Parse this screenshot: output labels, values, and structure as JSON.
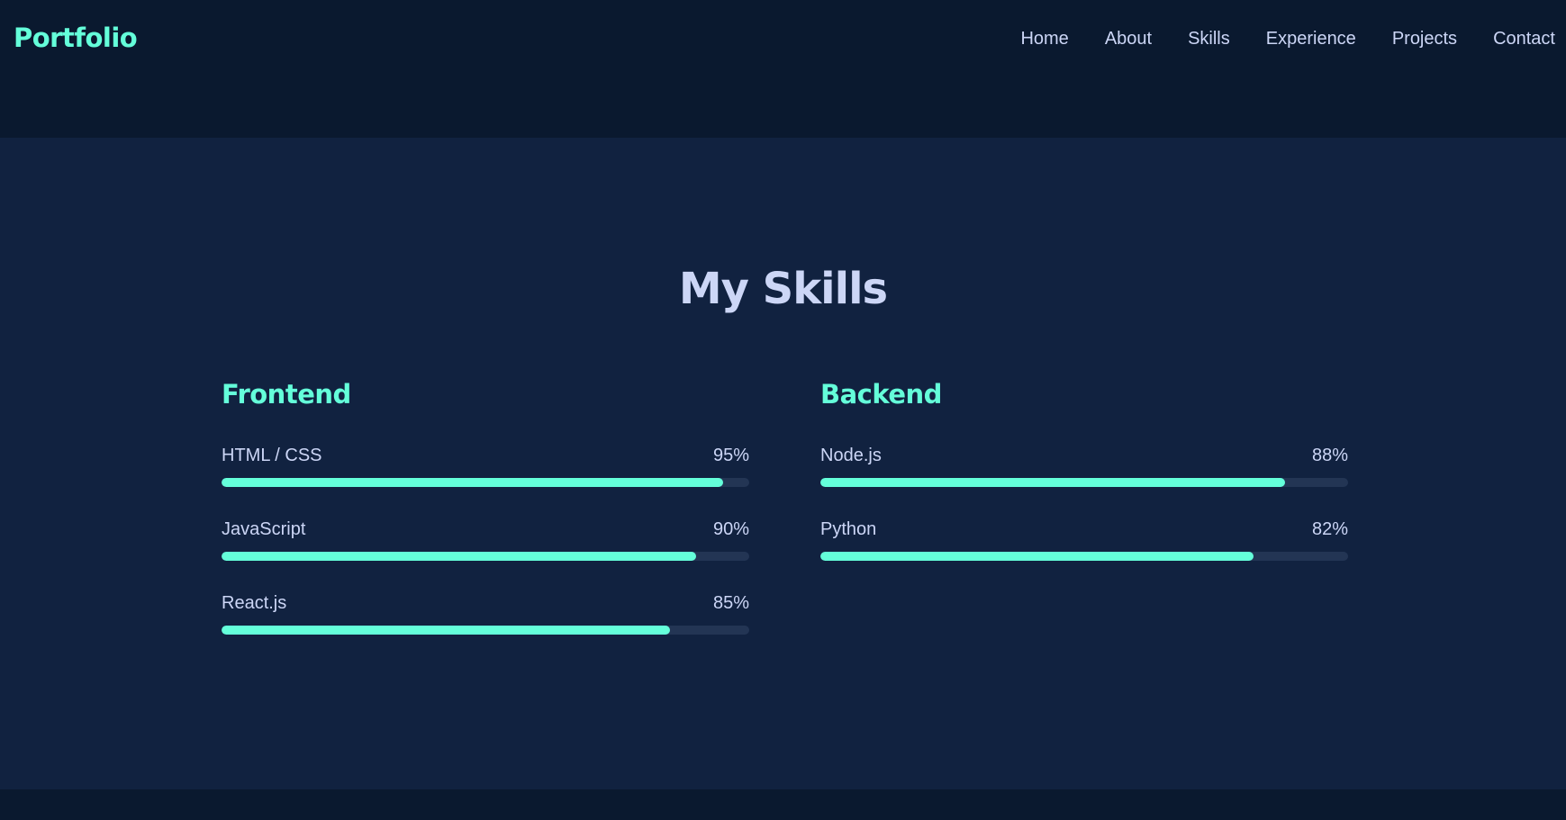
{
  "header": {
    "logo": "Portfolio",
    "nav": [
      "Home",
      "About",
      "Skills",
      "Experience",
      "Projects",
      "Contact"
    ]
  },
  "skills": {
    "title": "My Skills",
    "categories": [
      {
        "title": "Frontend",
        "items": [
          {
            "name": "HTML / CSS",
            "percent_label": "95%",
            "level": 95
          },
          {
            "name": "JavaScript",
            "percent_label": "90%",
            "level": 90
          },
          {
            "name": "React.js",
            "percent_label": "85%",
            "level": 85
          }
        ]
      },
      {
        "title": "Backend",
        "items": [
          {
            "name": "Node.js",
            "percent_label": "88%",
            "level": 88
          },
          {
            "name": "Python",
            "percent_label": "82%",
            "level": 82
          }
        ]
      }
    ]
  },
  "colors": {
    "background": "#0a192f",
    "section_background": "#112240",
    "accent": "#64ffda",
    "text": "#ccd6f6",
    "track": "#233554"
  }
}
